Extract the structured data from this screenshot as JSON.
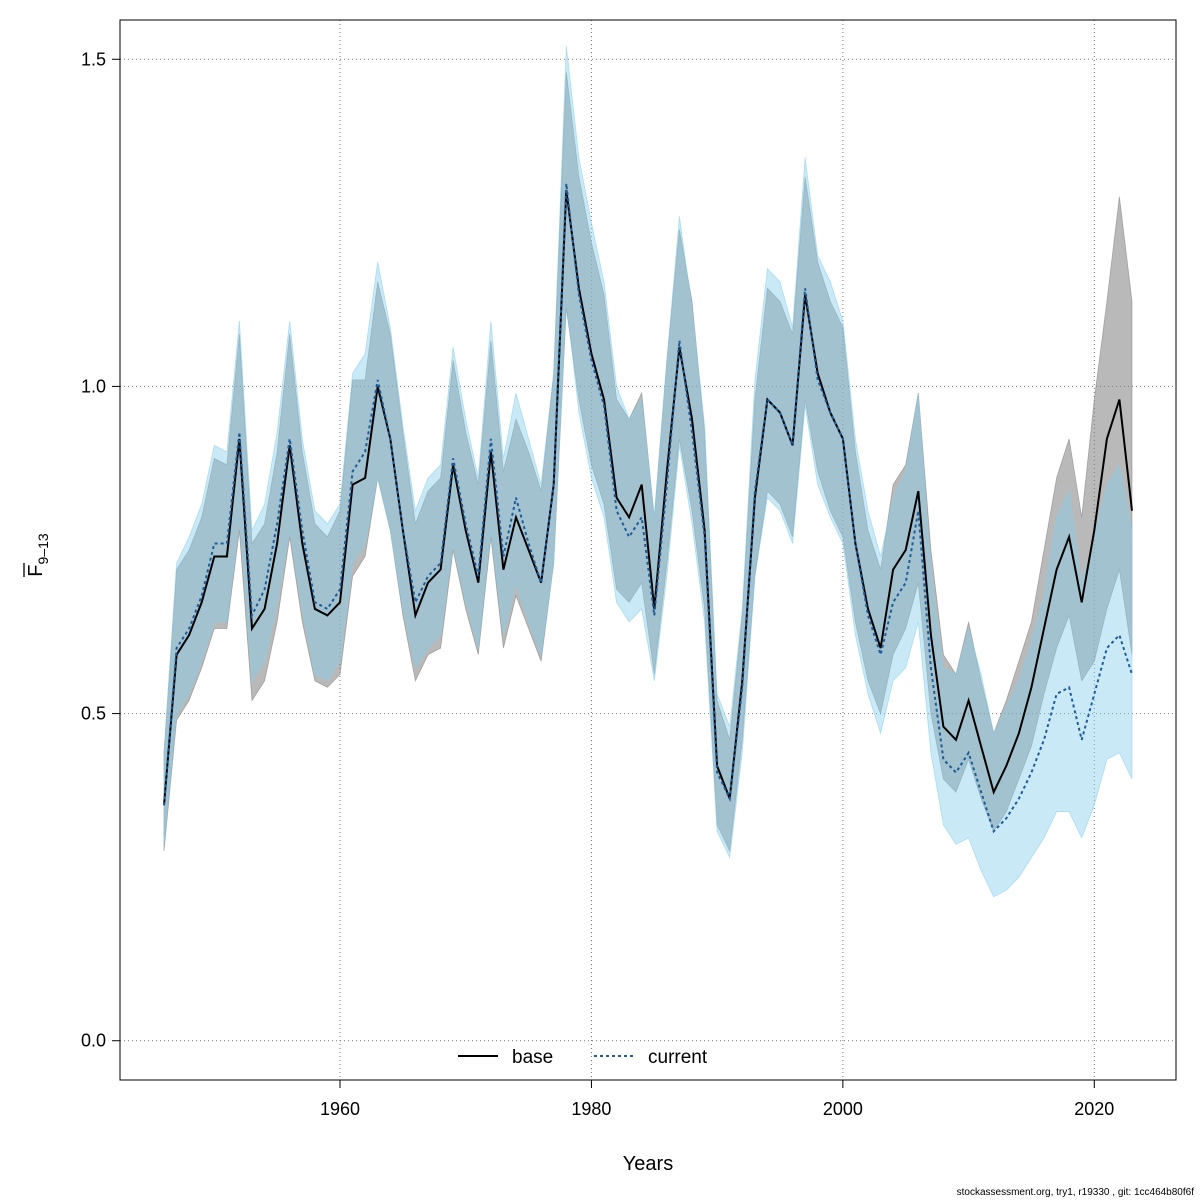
{
  "chart_data": {
    "type": "line",
    "xlabel": "Years",
    "ylabel": "F",
    "ylabel_subscript": "9–13",
    "xlim": [
      1942.5,
      2026.5
    ],
    "ylim": [
      -0.06,
      1.56
    ],
    "x_ticks": [
      1960,
      1980,
      2000,
      2020
    ],
    "y_ticks": [
      0.0,
      0.5,
      1.0,
      1.5
    ],
    "y_tick_labels": [
      "0.0",
      "0.5",
      "1.0",
      "1.5"
    ],
    "grid": true,
    "legend_position": "bottom-center",
    "x": [
      1946,
      1947,
      1948,
      1949,
      1950,
      1951,
      1952,
      1953,
      1954,
      1955,
      1956,
      1957,
      1958,
      1959,
      1960,
      1961,
      1962,
      1963,
      1964,
      1965,
      1966,
      1967,
      1968,
      1969,
      1970,
      1971,
      1972,
      1973,
      1974,
      1975,
      1976,
      1977,
      1978,
      1979,
      1980,
      1981,
      1982,
      1983,
      1984,
      1985,
      1986,
      1987,
      1988,
      1989,
      1990,
      1991,
      1992,
      1993,
      1994,
      1995,
      1996,
      1997,
      1998,
      1999,
      2000,
      2001,
      2002,
      2003,
      2004,
      2005,
      2006,
      2007,
      2008,
      2009,
      2010,
      2011,
      2012,
      2013,
      2014,
      2015,
      2016,
      2017,
      2018,
      2019,
      2020,
      2021,
      2022,
      2023
    ],
    "series": [
      {
        "name": "base",
        "line_style": "solid",
        "line_color": "#000000",
        "band_color": "#808080",
        "band_opacity": 0.55,
        "values": [
          0.36,
          0.59,
          0.62,
          0.67,
          0.74,
          0.74,
          0.92,
          0.63,
          0.66,
          0.76,
          0.91,
          0.76,
          0.66,
          0.65,
          0.67,
          0.85,
          0.86,
          1.0,
          0.92,
          0.78,
          0.65,
          0.7,
          0.72,
          0.88,
          0.78,
          0.7,
          0.9,
          0.72,
          0.8,
          0.75,
          0.7,
          0.85,
          1.3,
          1.15,
          1.05,
          0.98,
          0.83,
          0.8,
          0.85,
          0.66,
          0.87,
          1.06,
          0.95,
          0.78,
          0.42,
          0.37,
          0.55,
          0.83,
          0.98,
          0.96,
          0.91,
          1.14,
          1.02,
          0.96,
          0.92,
          0.76,
          0.66,
          0.6,
          0.72,
          0.75,
          0.84,
          0.62,
          0.48,
          0.46,
          0.52,
          0.45,
          0.38,
          0.42,
          0.47,
          0.54,
          0.63,
          0.72,
          0.77,
          0.67,
          0.78,
          0.92,
          0.98,
          0.81
        ],
        "lower": [
          0.29,
          0.49,
          0.52,
          0.57,
          0.63,
          0.63,
          0.78,
          0.52,
          0.55,
          0.64,
          0.77,
          0.64,
          0.55,
          0.54,
          0.56,
          0.71,
          0.74,
          0.86,
          0.78,
          0.65,
          0.55,
          0.59,
          0.6,
          0.75,
          0.66,
          0.59,
          0.77,
          0.6,
          0.68,
          0.63,
          0.58,
          0.73,
          1.12,
          0.98,
          0.88,
          0.82,
          0.69,
          0.67,
          0.7,
          0.56,
          0.73,
          0.92,
          0.81,
          0.66,
          0.33,
          0.29,
          0.46,
          0.71,
          0.84,
          0.82,
          0.77,
          0.98,
          0.87,
          0.81,
          0.77,
          0.64,
          0.55,
          0.5,
          0.59,
          0.63,
          0.7,
          0.5,
          0.4,
          0.38,
          0.43,
          0.37,
          0.32,
          0.35,
          0.4,
          0.45,
          0.53,
          0.6,
          0.65,
          0.55,
          0.58,
          0.66,
          0.72,
          0.59
        ],
        "upper": [
          0.44,
          0.72,
          0.75,
          0.8,
          0.89,
          0.88,
          1.08,
          0.76,
          0.79,
          0.9,
          1.08,
          0.9,
          0.79,
          0.77,
          0.81,
          1.01,
          1.01,
          1.16,
          1.08,
          0.93,
          0.79,
          0.84,
          0.86,
          1.04,
          0.93,
          0.85,
          1.07,
          0.87,
          0.95,
          0.9,
          0.84,
          1.02,
          1.48,
          1.32,
          1.22,
          1.14,
          0.98,
          0.95,
          0.99,
          0.8,
          1.04,
          1.24,
          1.13,
          0.93,
          0.52,
          0.46,
          0.65,
          0.98,
          1.15,
          1.13,
          1.08,
          1.32,
          1.19,
          1.13,
          1.09,
          0.9,
          0.78,
          0.72,
          0.85,
          0.88,
          0.99,
          0.75,
          0.59,
          0.56,
          0.64,
          0.55,
          0.47,
          0.52,
          0.58,
          0.64,
          0.75,
          0.86,
          0.92,
          0.8,
          0.98,
          1.13,
          1.29,
          1.13
        ]
      },
      {
        "name": "current",
        "line_style": "dotted",
        "line_color": "#1f5b9a",
        "band_color": "#87ceeb",
        "band_opacity": 0.45,
        "values": [
          0.36,
          0.6,
          0.63,
          0.68,
          0.76,
          0.76,
          0.93,
          0.65,
          0.69,
          0.79,
          0.92,
          0.78,
          0.67,
          0.66,
          0.69,
          0.87,
          0.9,
          1.01,
          0.92,
          0.78,
          0.67,
          0.71,
          0.73,
          0.89,
          0.79,
          0.71,
          0.92,
          0.74,
          0.83,
          0.76,
          0.7,
          0.85,
          1.31,
          1.14,
          1.04,
          0.97,
          0.81,
          0.77,
          0.8,
          0.65,
          0.85,
          1.07,
          0.93,
          0.77,
          0.41,
          0.37,
          0.54,
          0.84,
          0.98,
          0.96,
          0.91,
          1.15,
          1.01,
          0.96,
          0.92,
          0.76,
          0.65,
          0.59,
          0.67,
          0.7,
          0.81,
          0.57,
          0.43,
          0.41,
          0.44,
          0.38,
          0.32,
          0.34,
          0.37,
          0.41,
          0.46,
          0.53,
          0.54,
          0.46,
          0.53,
          0.6,
          0.62,
          0.56
        ],
        "lower": [
          0.3,
          0.5,
          0.53,
          0.58,
          0.64,
          0.64,
          0.8,
          0.55,
          0.58,
          0.67,
          0.78,
          0.66,
          0.56,
          0.55,
          0.58,
          0.73,
          0.76,
          0.86,
          0.78,
          0.66,
          0.57,
          0.6,
          0.62,
          0.76,
          0.67,
          0.6,
          0.78,
          0.62,
          0.7,
          0.64,
          0.59,
          0.73,
          1.13,
          0.96,
          0.86,
          0.8,
          0.67,
          0.64,
          0.66,
          0.55,
          0.71,
          0.91,
          0.79,
          0.64,
          0.32,
          0.28,
          0.44,
          0.71,
          0.83,
          0.81,
          0.76,
          0.97,
          0.85,
          0.8,
          0.76,
          0.62,
          0.53,
          0.47,
          0.55,
          0.57,
          0.64,
          0.44,
          0.33,
          0.3,
          0.31,
          0.26,
          0.22,
          0.23,
          0.25,
          0.28,
          0.31,
          0.35,
          0.35,
          0.31,
          0.36,
          0.43,
          0.44,
          0.4
        ],
        "upper": [
          0.44,
          0.73,
          0.77,
          0.82,
          0.91,
          0.9,
          1.1,
          0.78,
          0.82,
          0.93,
          1.1,
          0.92,
          0.81,
          0.79,
          0.82,
          1.02,
          1.05,
          1.19,
          1.09,
          0.94,
          0.81,
          0.86,
          0.88,
          1.06,
          0.95,
          0.86,
          1.1,
          0.89,
          0.99,
          0.92,
          0.85,
          1.02,
          1.52,
          1.35,
          1.25,
          1.16,
          1.0,
          0.95,
          0.98,
          0.8,
          1.04,
          1.26,
          1.12,
          0.94,
          0.53,
          0.48,
          0.66,
          1.01,
          1.18,
          1.16,
          1.09,
          1.35,
          1.2,
          1.16,
          1.1,
          0.92,
          0.81,
          0.74,
          0.83,
          0.87,
          0.99,
          0.72,
          0.57,
          0.56,
          0.63,
          0.56,
          0.47,
          0.51,
          0.55,
          0.61,
          0.68,
          0.8,
          0.84,
          0.7,
          0.77,
          0.85,
          0.88,
          0.78
        ]
      }
    ]
  },
  "footer": "stockassessment.org, try1, r19330 , git: 1cc464b80f6f"
}
